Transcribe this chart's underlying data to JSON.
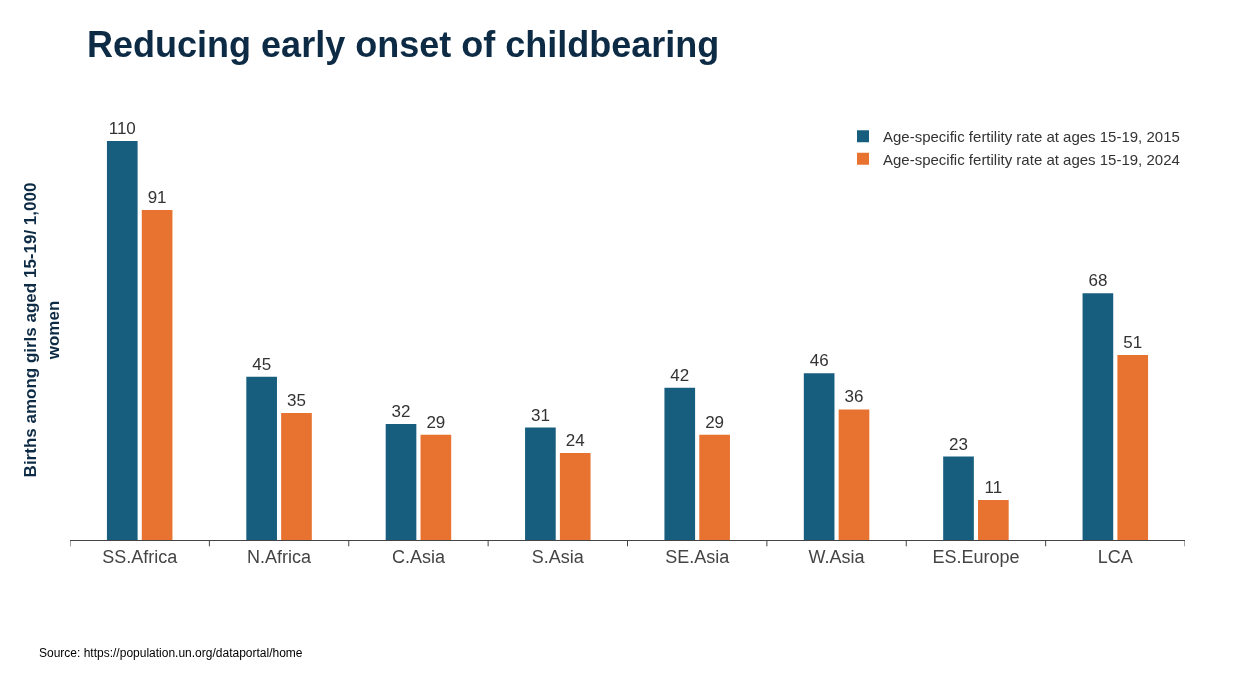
{
  "chart_data": {
    "type": "bar",
    "title": "Reducing early onset of childbearing",
    "ylabel": "Births among girls aged 15-19/ 1,000 women",
    "categories": [
      "SS.Africa",
      "N.Africa",
      "C.Asia",
      "S.Asia",
      "SE.Asia",
      "W.Asia",
      "ES.Europe",
      "LCA"
    ],
    "series": [
      {
        "name": "Age-specific fertility rate at ages 15-19, 2015",
        "color": "#175e7e",
        "values": [
          110,
          45,
          32,
          31,
          42,
          46,
          23,
          68
        ]
      },
      {
        "name": "Age-specific fertility rate at ages 15-19, 2024",
        "color": "#e8722f",
        "values": [
          91,
          35,
          29,
          24,
          29,
          36,
          11,
          51
        ]
      }
    ],
    "data_labels": true,
    "legend": "top right",
    "tick_labels": "x",
    "annotations": [
      "Source: https://population.un.org/dataportal/home"
    ]
  }
}
